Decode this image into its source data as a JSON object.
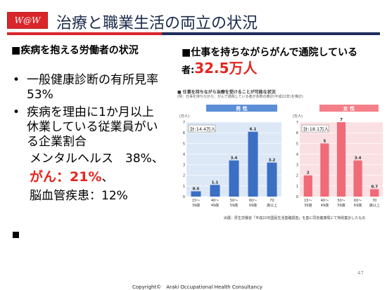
{
  "header": {
    "logo_text": "W@W",
    "title": "治療と職業生活の両立の状況",
    "accent_colors": {
      "red": "#d9262b",
      "navy": "#1f2d5c"
    }
  },
  "left": {
    "heading": "■疾病を抱える労働者の状況",
    "bullets": [
      {
        "marker": "•",
        "text": "一般健康診断の有所見率　53%"
      },
      {
        "marker": "•",
        "text": "疾病を理由に1か月以上休業している従業員がいる企業割合"
      }
    ],
    "subitems": {
      "mental": "メンタルヘルス　38%、",
      "cancer": "がん：21%",
      "cancer_tail": "、",
      "cerebro": "脳血管疾患：12%"
    },
    "trailing_marker": "■"
  },
  "right": {
    "heading_line1": "■仕事を持ちながらがんで通院している",
    "heading_prefix": "者:",
    "heading_value": "32.5万人"
  },
  "chart_panel": {
    "title": "■ 仕事を持ちながら治療を受けることが可能な状況",
    "subtitle": "(例：仕事を持ちながら、がんで通院している者が多数の推計(平成22年)を推計)",
    "source": "出展：厚生労働省「平成22年国民生活基礎調査」を基に同省健康局にて特別集計したもの"
  },
  "chart_data": [
    {
      "type": "bar",
      "title": "男 性",
      "ylabel": "(万人)",
      "total": "計:14.4万人",
      "categories": [
        "15〜39歳",
        "40〜49歳",
        "50〜59歳",
        "60〜69歳",
        "70歳以上"
      ],
      "values": [
        0.5,
        1.1,
        3.4,
        6.1,
        3.2
      ],
      "value_labels": [
        "0.5",
        "1.1",
        "3.4",
        "6.1",
        "3.2"
      ],
      "yticks": [
        "0",
        "1",
        "2",
        "3",
        "4",
        "5",
        "6",
        "7"
      ],
      "ylim": [
        0,
        7
      ],
      "bar_color": "#3a6fc4",
      "header_color": "#5b8ed6",
      "panel_bg": "#dce8f6"
    },
    {
      "type": "bar",
      "title": "女 性",
      "ylabel": "(万人)",
      "total": "計:18.1万人",
      "categories": [
        "15〜39歳",
        "40〜49歳",
        "50〜59歳",
        "60〜69歳",
        "70歳以上"
      ],
      "values": [
        2.0,
        5.0,
        7.0,
        3.4,
        0.7
      ],
      "value_labels": [
        "2",
        "5",
        "7",
        "3.4",
        "0.7"
      ],
      "yticks": [
        "0",
        "1",
        "2",
        "3",
        "4",
        "5",
        "6",
        "7"
      ],
      "ylim": [
        0,
        7
      ],
      "bar_color": "#f06b78",
      "header_color": "#f47f88",
      "panel_bg": "#fbe0e3"
    }
  ],
  "footer": {
    "page_number": "47",
    "copyright": "Copyright©　Araki Occupational Health Consultancy"
  }
}
